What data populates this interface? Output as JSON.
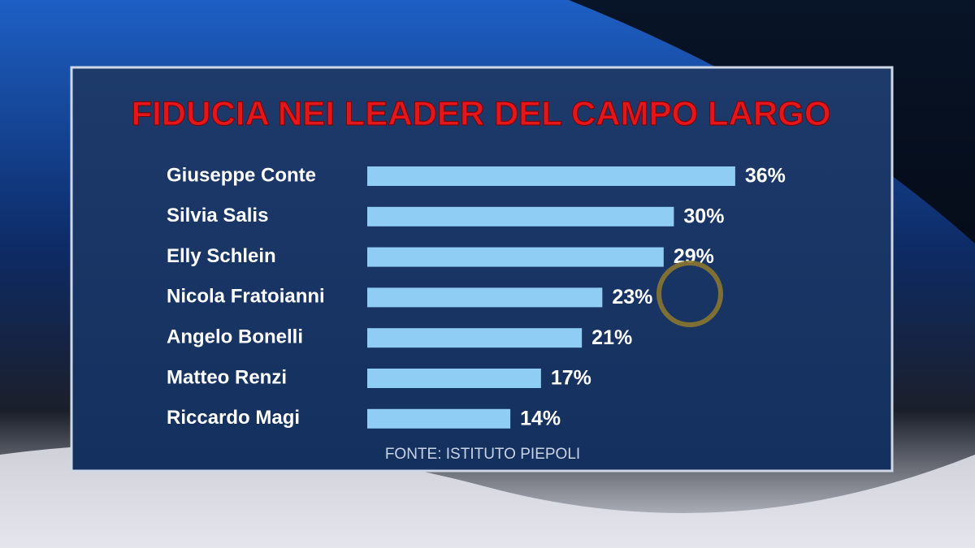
{
  "chart_data": {
    "type": "bar",
    "orientation": "horizontal",
    "title": "FIDUCIA NEI LEADER DEL CAMPO LARGO",
    "categories": [
      "Giuseppe Conte",
      "Silvia Salis",
      "Elly Schlein",
      "Nicola Fratoianni",
      "Angelo Bonelli",
      "Matteo Renzi",
      "Riccardo Magi"
    ],
    "values": [
      36,
      30,
      29,
      23,
      21,
      17,
      14
    ],
    "value_labels": [
      "36%",
      "30%",
      "29%",
      "23%",
      "21%",
      "17%",
      "14%"
    ],
    "color": "#8fcdf5",
    "source": "FONTE: ISTITUTO PIEPOLI"
  }
}
